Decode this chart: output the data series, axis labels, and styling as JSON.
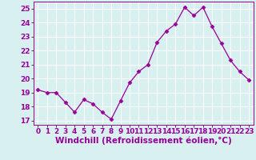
{
  "x": [
    0,
    1,
    2,
    3,
    4,
    5,
    6,
    7,
    8,
    9,
    10,
    11,
    12,
    13,
    14,
    15,
    16,
    17,
    18,
    19,
    20,
    21,
    22,
    23
  ],
  "y": [
    19.2,
    19.0,
    19.0,
    18.3,
    17.6,
    18.5,
    18.2,
    17.6,
    17.1,
    18.4,
    19.7,
    20.5,
    21.0,
    22.6,
    23.4,
    23.9,
    25.1,
    24.5,
    25.1,
    23.7,
    22.5,
    21.3,
    20.5,
    19.9
  ],
  "xlabel": "Windchill (Refroidissement éolien,°C)",
  "ylim": [
    16.7,
    25.5
  ],
  "yticks": [
    17,
    18,
    19,
    20,
    21,
    22,
    23,
    24,
    25
  ],
  "xticks": [
    0,
    1,
    2,
    3,
    4,
    5,
    6,
    7,
    8,
    9,
    10,
    11,
    12,
    13,
    14,
    15,
    16,
    17,
    18,
    19,
    20,
    21,
    22,
    23
  ],
  "line_color": "#990099",
  "marker": "D",
  "marker_size": 2.5,
  "bg_color": "#d8f0f0",
  "grid_color": "#b0d8d8",
  "tick_label_fontsize": 6.5,
  "xlabel_fontsize": 7.5
}
